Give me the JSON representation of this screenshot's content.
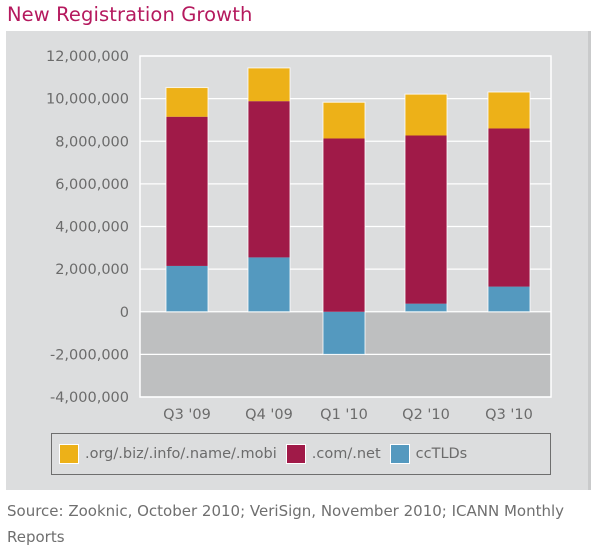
{
  "chart_data": {
    "type": "bar",
    "stacked": true,
    "title": "New Registration Growth",
    "xlabel": "",
    "ylabel": "",
    "categories": [
      "Q3 '09",
      "Q4 '09",
      "Q1 '10",
      "Q2 '10",
      "Q3 '10"
    ],
    "series": [
      {
        "name": "ccTLDs",
        "color": "#5499BF",
        "values": [
          2150000,
          2550000,
          -2000000,
          380000,
          1180000
        ]
      },
      {
        "name": ".com/.net",
        "color": "#A01A48",
        "values": [
          7000000,
          7330000,
          8130000,
          7890000,
          7420000
        ]
      },
      {
        "name": ".org/.biz/.info/.name/.mobi",
        "color": "#EDB118",
        "values": [
          1370000,
          1560000,
          1700000,
          1940000,
          1710000
        ]
      }
    ],
    "ylim": [
      -4000000,
      12000000
    ],
    "yticks": [
      12000000,
      10000000,
      8000000,
      6000000,
      4000000,
      2000000,
      0,
      -2000000,
      -4000000
    ],
    "ytick_labels": [
      "12,000,000",
      "10,000,000",
      "8,000,000",
      "6,000,000",
      "4,000,000",
      "2,000,000",
      "0",
      "-2,000,000",
      "-4,000,000"
    ],
    "grid": true,
    "legend_position": "bottom",
    "legend_order": [
      ".org/.biz/.info/.name/.mobi",
      ".com/.net",
      "ccTLDs"
    ],
    "source": "Source: Zooknic, October 2010; VeriSign, November 2010; ICANN Monthly Reports"
  },
  "colors": {
    "title": "#B5195E",
    "panel": "#DCDDDE",
    "negative_region": "#BEBFC0",
    "grid": "#FFFFFF",
    "text": "#6B6B6B"
  },
  "legend": [
    {
      "label": ".org/.biz/.info/.name/.mobi",
      "color": "#EDB118"
    },
    {
      "label": ".com/.net",
      "color": "#A01A48"
    },
    {
      "label": "ccTLDs",
      "color": "#5499BF"
    }
  ]
}
